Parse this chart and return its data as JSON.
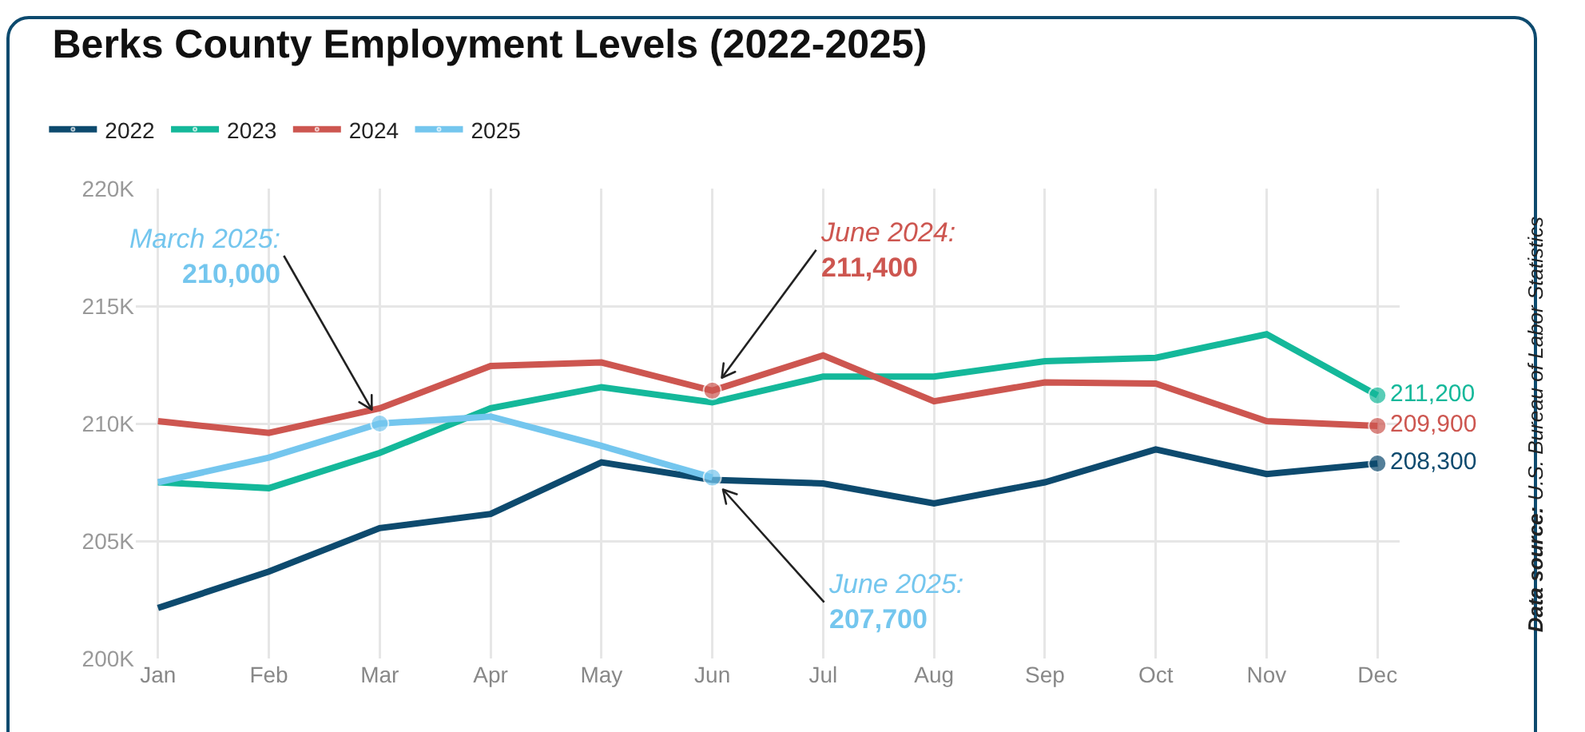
{
  "chart_data": {
    "type": "line",
    "title": "Berks County Employment Levels (2022-2025)",
    "categories": [
      "Jan",
      "Feb",
      "Mar",
      "Apr",
      "May",
      "Jun",
      "Jul",
      "Aug",
      "Sep",
      "Oct",
      "Nov",
      "Dec"
    ],
    "series": [
      {
        "name": "2022",
        "color": "#0d4a6e",
        "values": [
          202150,
          203700,
          205550,
          206150,
          208350,
          207600,
          207450,
          206600,
          207500,
          208900,
          207850,
          208300
        ],
        "value_labels": [
          null,
          null,
          null,
          null,
          null,
          null,
          null,
          null,
          null,
          null,
          null,
          "208,300"
        ]
      },
      {
        "name": "2023",
        "color": "#14b89a",
        "values": [
          207500,
          207250,
          208750,
          210650,
          211550,
          210900,
          212000,
          212000,
          212650,
          212800,
          213800,
          211200
        ],
        "value_labels": [
          null,
          null,
          null,
          null,
          null,
          null,
          null,
          null,
          null,
          null,
          null,
          "211,200"
        ]
      },
      {
        "name": "2024",
        "color": "#cd5650",
        "values": [
          210100,
          209600,
          210650,
          212450,
          212600,
          211400,
          212900,
          210950,
          211750,
          211700,
          210100,
          209900
        ],
        "value_labels": [
          null,
          null,
          null,
          null,
          null,
          null,
          null,
          null,
          null,
          null,
          null,
          "209,900"
        ]
      },
      {
        "name": "2025",
        "color": "#74c6ee",
        "values": [
          207500,
          208550,
          210000,
          210300,
          209050,
          207700,
          null,
          null,
          null,
          null,
          null,
          null
        ],
        "value_labels": [
          null,
          null,
          null,
          null,
          null,
          null,
          null,
          null,
          null,
          null,
          null,
          null
        ]
      }
    ],
    "ylim": [
      200000,
      220000
    ],
    "yticks": [
      {
        "value": 200000,
        "label": "200K"
      },
      {
        "value": 205000,
        "label": "205K"
      },
      {
        "value": 210000,
        "label": "210K"
      },
      {
        "value": 215000,
        "label": "215K"
      },
      {
        "value": 220000,
        "label": "220K"
      }
    ],
    "grid": true,
    "legend": "top left",
    "marker": "none",
    "line_style": "solid",
    "annotations": [
      {
        "text": "March 2025:\n210,000",
        "x": "Mar",
        "y": 210000
      },
      {
        "text": "June 2024:\n211,400",
        "x": "Jun",
        "y": 211400
      },
      {
        "text": "June 2025:\n207,700",
        "x": "Jun",
        "y": 207700
      },
      "Data source: U.S. Bureau of Labor Statistics"
    ]
  }
}
